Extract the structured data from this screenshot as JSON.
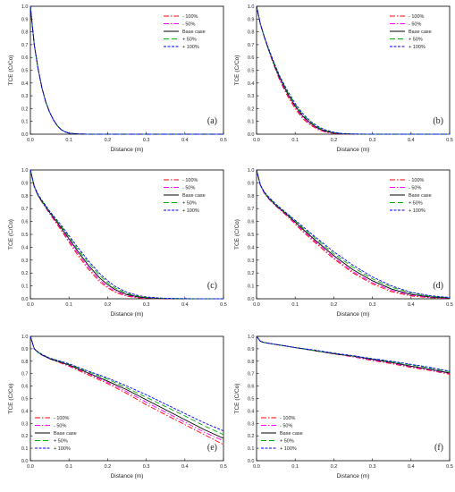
{
  "figure": {
    "legend_labels": [
      "- 100%",
      "- 50%",
      "Base case",
      "+ 50%",
      "+ 100%"
    ],
    "series_colors": [
      "#ff0000",
      "#ff00ff",
      "#000000",
      "#00b000",
      "#0000ff"
    ],
    "series_dashes": [
      "6,2,1.5,2",
      "6,2,1.5,2",
      "",
      "6,3",
      "3,1.5"
    ]
  },
  "chart_data": [
    {
      "type": "line",
      "panel_label": "(a)",
      "xlabel": "Distance (m)",
      "ylabel": "TCE (C/Co)",
      "xlim": [
        0,
        0.5
      ],
      "ylim": [
        0,
        1
      ],
      "xticks": [
        "0.0",
        "0.1",
        "0.2",
        "0.3",
        "0.4",
        "0.5"
      ],
      "yticks": [
        "0.0",
        "0.1",
        "0.2",
        "0.3",
        "0.4",
        "0.5",
        "0.6",
        "0.7",
        "0.8",
        "0.9",
        "1.0"
      ],
      "legend_position": "top-right",
      "x": [
        0,
        0.01,
        0.02,
        0.03,
        0.04,
        0.05,
        0.06,
        0.07,
        0.08,
        0.09,
        0.1,
        0.12,
        0.15,
        0.2,
        0.3,
        0.4,
        0.5
      ],
      "series": [
        {
          "name": "- 100%",
          "values": [
            1.0,
            0.7,
            0.51,
            0.36,
            0.25,
            0.17,
            0.11,
            0.065,
            0.035,
            0.018,
            0.008,
            0.002,
            0,
            0,
            0,
            0,
            0
          ]
        },
        {
          "name": "- 50%",
          "values": [
            1.0,
            0.7,
            0.51,
            0.36,
            0.25,
            0.17,
            0.11,
            0.065,
            0.035,
            0.018,
            0.008,
            0.002,
            0,
            0,
            0,
            0,
            0
          ]
        },
        {
          "name": "Base case",
          "values": [
            1.0,
            0.7,
            0.51,
            0.36,
            0.25,
            0.17,
            0.11,
            0.065,
            0.035,
            0.018,
            0.008,
            0.002,
            0,
            0,
            0,
            0,
            0
          ]
        },
        {
          "name": "+ 50%",
          "values": [
            1.0,
            0.7,
            0.51,
            0.36,
            0.25,
            0.17,
            0.11,
            0.065,
            0.035,
            0.018,
            0.008,
            0.002,
            0,
            0,
            0,
            0,
            0
          ]
        },
        {
          "name": "+ 100%",
          "values": [
            1.0,
            0.7,
            0.51,
            0.36,
            0.25,
            0.17,
            0.11,
            0.065,
            0.035,
            0.018,
            0.008,
            0.002,
            0,
            0,
            0,
            0,
            0
          ]
        }
      ]
    },
    {
      "type": "line",
      "panel_label": "(b)",
      "xlabel": "Distance (m)",
      "ylabel": "TCE (C/Co)",
      "xlim": [
        0,
        0.5
      ],
      "ylim": [
        0,
        1
      ],
      "xticks": [
        "0.0",
        "0.1",
        "0.2",
        "0.3",
        "0.4",
        "0.5"
      ],
      "yticks": [
        "0.0",
        "0.1",
        "0.2",
        "0.3",
        "0.4",
        "0.5",
        "0.6",
        "0.7",
        "0.8",
        "0.9",
        "1.0"
      ],
      "legend_position": "top-right",
      "x": [
        0,
        0.01,
        0.02,
        0.03,
        0.04,
        0.05,
        0.06,
        0.08,
        0.1,
        0.12,
        0.14,
        0.16,
        0.18,
        0.2,
        0.22,
        0.25,
        0.3,
        0.4,
        0.5
      ],
      "series": [
        {
          "name": "- 100%",
          "values": [
            1.0,
            0.86,
            0.76,
            0.67,
            0.58,
            0.5,
            0.42,
            0.3,
            0.2,
            0.12,
            0.07,
            0.035,
            0.015,
            0.006,
            0.002,
            0,
            0,
            0,
            0
          ]
        },
        {
          "name": "- 50%",
          "values": [
            1.0,
            0.86,
            0.76,
            0.67,
            0.585,
            0.505,
            0.43,
            0.31,
            0.21,
            0.13,
            0.078,
            0.04,
            0.018,
            0.008,
            0.003,
            0,
            0,
            0,
            0
          ]
        },
        {
          "name": "Base case",
          "values": [
            1.0,
            0.86,
            0.76,
            0.67,
            0.59,
            0.51,
            0.44,
            0.32,
            0.22,
            0.14,
            0.085,
            0.045,
            0.022,
            0.01,
            0.004,
            0.001,
            0,
            0,
            0
          ]
        },
        {
          "name": "+ 50%",
          "values": [
            1.0,
            0.86,
            0.76,
            0.675,
            0.595,
            0.52,
            0.45,
            0.33,
            0.23,
            0.15,
            0.095,
            0.052,
            0.027,
            0.013,
            0.005,
            0.001,
            0,
            0,
            0
          ]
        },
        {
          "name": "+ 100%",
          "values": [
            1.0,
            0.86,
            0.765,
            0.68,
            0.6,
            0.525,
            0.455,
            0.34,
            0.24,
            0.16,
            0.1,
            0.058,
            0.031,
            0.015,
            0.006,
            0.002,
            0,
            0,
            0
          ]
        }
      ]
    },
    {
      "type": "line",
      "panel_label": "(c)",
      "xlabel": "Distance (m)",
      "ylabel": "TCE (C/Co)",
      "xlim": [
        0,
        0.5
      ],
      "ylim": [
        0,
        1
      ],
      "xticks": [
        "0.0",
        "0.1",
        "0.2",
        "0.3",
        "0.4",
        "0.5"
      ],
      "yticks": [
        "0.0",
        "0.1",
        "0.2",
        "0.3",
        "0.4",
        "0.5",
        "0.6",
        "0.7",
        "0.8",
        "0.9",
        "1.0"
      ],
      "legend_position": "top-right",
      "x": [
        0,
        0.01,
        0.02,
        0.03,
        0.05,
        0.08,
        0.1,
        0.12,
        0.15,
        0.18,
        0.2,
        0.22,
        0.25,
        0.28,
        0.3,
        0.33,
        0.35,
        0.4,
        0.45,
        0.5
      ],
      "series": [
        {
          "name": "- 100%",
          "values": [
            1.0,
            0.87,
            0.8,
            0.75,
            0.66,
            0.53,
            0.44,
            0.35,
            0.23,
            0.13,
            0.085,
            0.05,
            0.02,
            0.007,
            0.003,
            0.001,
            0,
            0,
            0,
            0
          ]
        },
        {
          "name": "- 50%",
          "values": [
            1.0,
            0.87,
            0.8,
            0.755,
            0.665,
            0.54,
            0.45,
            0.365,
            0.245,
            0.145,
            0.095,
            0.058,
            0.026,
            0.01,
            0.005,
            0.002,
            0.001,
            0,
            0,
            0
          ]
        },
        {
          "name": "Base case",
          "values": [
            1.0,
            0.87,
            0.8,
            0.755,
            0.67,
            0.55,
            0.465,
            0.38,
            0.26,
            0.16,
            0.11,
            0.07,
            0.033,
            0.014,
            0.007,
            0.003,
            0.001,
            0,
            0,
            0
          ]
        },
        {
          "name": "+ 50%",
          "values": [
            1.0,
            0.87,
            0.805,
            0.76,
            0.675,
            0.56,
            0.48,
            0.395,
            0.28,
            0.18,
            0.125,
            0.082,
            0.042,
            0.019,
            0.011,
            0.005,
            0.003,
            0.001,
            0,
            0
          ]
        },
        {
          "name": "+ 100%",
          "values": [
            1.0,
            0.875,
            0.81,
            0.765,
            0.68,
            0.57,
            0.49,
            0.41,
            0.295,
            0.195,
            0.14,
            0.095,
            0.05,
            0.025,
            0.014,
            0.007,
            0.004,
            0.001,
            0,
            0
          ]
        }
      ]
    },
    {
      "type": "line",
      "panel_label": "(d)",
      "xlabel": "Distance (m)",
      "ylabel": "TCE (C/Co)",
      "xlim": [
        0,
        0.5
      ],
      "ylim": [
        0,
        1
      ],
      "xticks": [
        "0.0",
        "0.1",
        "0.2",
        "0.3",
        "0.4",
        "0.5"
      ],
      "yticks": [
        "0.0",
        "0.1",
        "0.2",
        "0.3",
        "0.4",
        "0.5",
        "0.6",
        "0.7",
        "0.8",
        "0.9",
        "1.0"
      ],
      "legend_position": "top-right",
      "x": [
        0,
        0.01,
        0.02,
        0.03,
        0.05,
        0.08,
        0.1,
        0.12,
        0.15,
        0.2,
        0.25,
        0.3,
        0.35,
        0.4,
        0.45,
        0.5
      ],
      "series": [
        {
          "name": "- 100%",
          "values": [
            1.0,
            0.88,
            0.82,
            0.78,
            0.72,
            0.64,
            0.58,
            0.52,
            0.44,
            0.31,
            0.2,
            0.115,
            0.055,
            0.022,
            0.008,
            0.002
          ]
        },
        {
          "name": "- 50%",
          "values": [
            1.0,
            0.88,
            0.82,
            0.78,
            0.72,
            0.645,
            0.585,
            0.53,
            0.45,
            0.32,
            0.21,
            0.125,
            0.065,
            0.028,
            0.011,
            0.003
          ]
        },
        {
          "name": "Base case",
          "values": [
            1.0,
            0.88,
            0.825,
            0.785,
            0.725,
            0.65,
            0.595,
            0.54,
            0.46,
            0.335,
            0.225,
            0.14,
            0.075,
            0.034,
            0.014,
            0.005
          ]
        },
        {
          "name": "+ 50%",
          "values": [
            1.0,
            0.88,
            0.825,
            0.79,
            0.73,
            0.655,
            0.605,
            0.55,
            0.475,
            0.35,
            0.245,
            0.155,
            0.09,
            0.045,
            0.02,
            0.008
          ]
        },
        {
          "name": "+ 100%",
          "values": [
            1.0,
            0.885,
            0.83,
            0.795,
            0.735,
            0.66,
            0.61,
            0.56,
            0.485,
            0.365,
            0.26,
            0.17,
            0.1,
            0.05,
            0.024,
            0.01
          ]
        }
      ]
    },
    {
      "type": "line",
      "panel_label": "(e)",
      "xlabel": "Distance (m)",
      "ylabel": "TCE (C/Co)",
      "xlim": [
        0,
        0.5
      ],
      "ylim": [
        0,
        1
      ],
      "xticks": [
        "0.0",
        "0.1",
        "0.2",
        "0.3",
        "0.4",
        "0.5"
      ],
      "yticks": [
        "0.0",
        "0.1",
        "0.2",
        "0.3",
        "0.4",
        "0.5",
        "0.6",
        "0.7",
        "0.8",
        "0.9",
        "1.0"
      ],
      "legend_position": "bottom-left",
      "x": [
        0,
        0.01,
        0.02,
        0.03,
        0.05,
        0.1,
        0.15,
        0.2,
        0.25,
        0.3,
        0.35,
        0.4,
        0.45,
        0.5
      ],
      "series": [
        {
          "name": "- 100%",
          "values": [
            1.0,
            0.9,
            0.87,
            0.85,
            0.82,
            0.76,
            0.69,
            0.62,
            0.54,
            0.45,
            0.37,
            0.29,
            0.21,
            0.13
          ]
        },
        {
          "name": "- 50%",
          "values": [
            1.0,
            0.9,
            0.87,
            0.85,
            0.82,
            0.765,
            0.7,
            0.63,
            0.555,
            0.47,
            0.39,
            0.31,
            0.23,
            0.16
          ]
        },
        {
          "name": "Base case",
          "values": [
            1.0,
            0.9,
            0.87,
            0.85,
            0.82,
            0.77,
            0.705,
            0.64,
            0.57,
            0.49,
            0.41,
            0.33,
            0.25,
            0.18
          ]
        },
        {
          "name": "+ 50%",
          "values": [
            1.0,
            0.9,
            0.87,
            0.855,
            0.825,
            0.775,
            0.715,
            0.655,
            0.585,
            0.51,
            0.435,
            0.36,
            0.28,
            0.21
          ]
        },
        {
          "name": "+ 100%",
          "values": [
            1.0,
            0.9,
            0.875,
            0.855,
            0.825,
            0.78,
            0.72,
            0.665,
            0.6,
            0.53,
            0.455,
            0.38,
            0.305,
            0.24
          ]
        }
      ]
    },
    {
      "type": "line",
      "panel_label": "(f)",
      "xlabel": "Distance (m)",
      "ylabel": "TCE (C/Co)",
      "xlim": [
        0,
        0.5
      ],
      "ylim": [
        0,
        1
      ],
      "xticks": [
        "0.0",
        "0.1",
        "0.2",
        "0.3",
        "0.4",
        "0.5"
      ],
      "yticks": [
        "0.0",
        "0.1",
        "0.2",
        "0.3",
        "0.4",
        "0.5",
        "0.6",
        "0.7",
        "0.8",
        "0.9",
        "1.0"
      ],
      "legend_position": "bottom-left",
      "x": [
        0,
        0.01,
        0.02,
        0.05,
        0.1,
        0.15,
        0.2,
        0.25,
        0.3,
        0.35,
        0.4,
        0.45,
        0.5
      ],
      "series": [
        {
          "name": "- 100%",
          "values": [
            1.0,
            0.96,
            0.95,
            0.935,
            0.91,
            0.885,
            0.86,
            0.835,
            0.805,
            0.78,
            0.75,
            0.725,
            0.695
          ]
        },
        {
          "name": "- 50%",
          "values": [
            1.0,
            0.96,
            0.95,
            0.935,
            0.91,
            0.885,
            0.86,
            0.835,
            0.81,
            0.785,
            0.755,
            0.73,
            0.7
          ]
        },
        {
          "name": "Base case",
          "values": [
            1.0,
            0.96,
            0.95,
            0.935,
            0.91,
            0.885,
            0.86,
            0.84,
            0.815,
            0.79,
            0.76,
            0.735,
            0.705
          ]
        },
        {
          "name": "+ 50%",
          "values": [
            1.0,
            0.96,
            0.95,
            0.935,
            0.91,
            0.885,
            0.865,
            0.84,
            0.82,
            0.795,
            0.77,
            0.745,
            0.715
          ]
        },
        {
          "name": "+ 100%",
          "values": [
            1.0,
            0.96,
            0.95,
            0.935,
            0.91,
            0.89,
            0.865,
            0.845,
            0.82,
            0.8,
            0.775,
            0.75,
            0.72
          ]
        }
      ]
    }
  ]
}
